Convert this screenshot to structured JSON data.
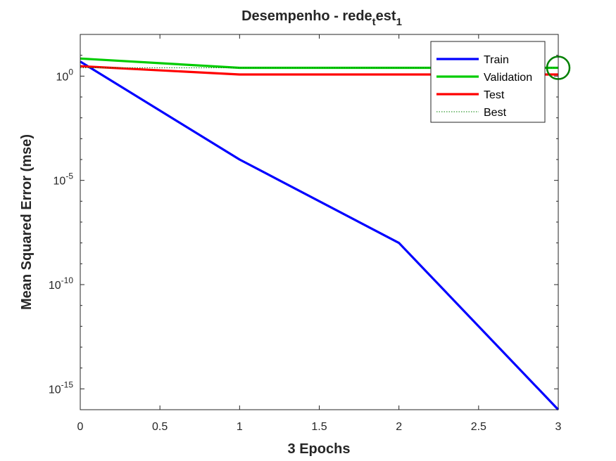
{
  "chart_data": {
    "type": "line",
    "title": {
      "base": "Desempenho - rede",
      "sub1": "t",
      "mid": "est",
      "sub2": "1"
    },
    "xlabel": "3 Epochs",
    "ylabel": "Mean Squared Error  (mse)",
    "xlim": [
      0,
      3
    ],
    "ylim_log10": [
      -16,
      2
    ],
    "yscale": "log",
    "x_ticks": [
      "0",
      "0.5",
      "1",
      "1.5",
      "2",
      "2.5",
      "3"
    ],
    "y_ticks": [
      {
        "base": "10",
        "exp": "-15"
      },
      {
        "base": "10",
        "exp": "-10"
      },
      {
        "base": "10",
        "exp": "-5"
      },
      {
        "base": "10",
        "exp": "0"
      }
    ],
    "legend_position": "top-right",
    "series": [
      {
        "name": "Train",
        "color": "#0000ff",
        "x": [
          0,
          1,
          2,
          3
        ],
        "y": [
          5.0,
          0.0001,
          1e-08,
          1e-16
        ]
      },
      {
        "name": "Validation",
        "color": "#00cc00",
        "x": [
          0,
          1,
          2,
          3
        ],
        "y": [
          7.0,
          2.5,
          2.5,
          2.5
        ]
      },
      {
        "name": "Test",
        "color": "#ff0000",
        "x": [
          0,
          1,
          2,
          3
        ],
        "y": [
          3.0,
          1.2,
          1.2,
          1.2
        ]
      }
    ],
    "best": {
      "name": "Best",
      "epoch": 3,
      "value": 2.5,
      "line_color": "#008000",
      "marker_color": "#008000"
    }
  }
}
